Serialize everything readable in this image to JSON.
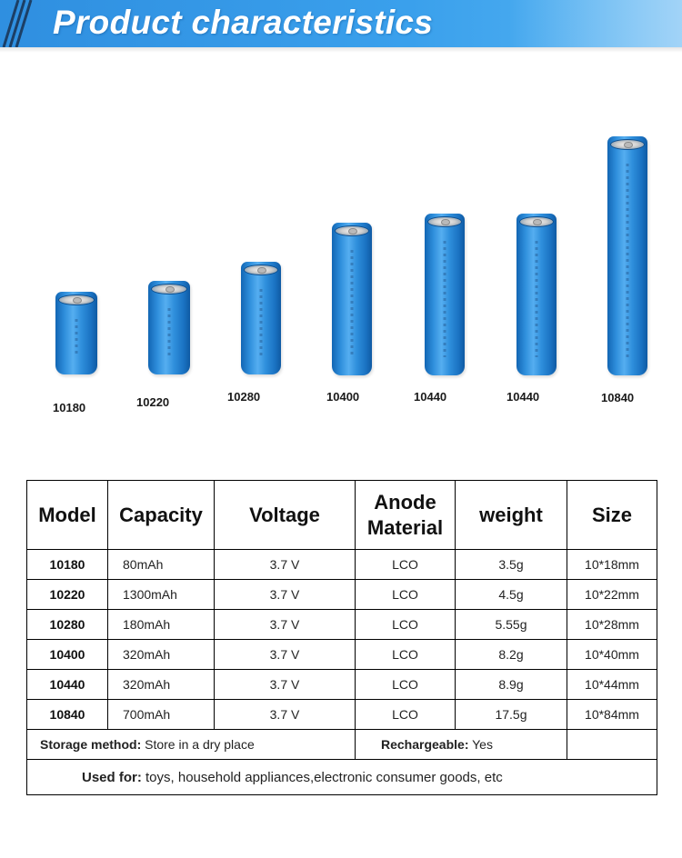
{
  "header": {
    "title": "Product characteristics",
    "accent_color": "#3aa0ec"
  },
  "batteries": [
    {
      "model": "10180"
    },
    {
      "model": "10220"
    },
    {
      "model": "10280"
    },
    {
      "model": "10400"
    },
    {
      "model": "10440"
    },
    {
      "model": "10440"
    },
    {
      "model": "10840"
    }
  ],
  "table": {
    "headers": {
      "model": "Model",
      "capacity": "Capacity",
      "voltage": "Voltage",
      "anode_line1": "Anode",
      "anode_line2": "Material",
      "weight": "weight",
      "size": "Size"
    },
    "rows": [
      {
        "model": "10180",
        "capacity": "80mAh",
        "voltage": "3.7 V",
        "material": "LCO",
        "weight": "3.5g",
        "size": "10*18mm"
      },
      {
        "model": "10220",
        "capacity": "1300mAh",
        "voltage": "3.7 V",
        "material": "LCO",
        "weight": "4.5g",
        "size": "10*22mm"
      },
      {
        "model": "10280",
        "capacity": "180mAh",
        "voltage": "3.7 V",
        "material": "LCO",
        "weight": "5.55g",
        "size": "10*28mm"
      },
      {
        "model": "10400",
        "capacity": "320mAh",
        "voltage": "3.7 V",
        "material": "LCO",
        "weight": "8.2g",
        "size": "10*40mm"
      },
      {
        "model": "10440",
        "capacity": "320mAh",
        "voltage": "3.7 V",
        "material": "LCO",
        "weight": "8.9g",
        "size": "10*44mm"
      },
      {
        "model": "10840",
        "capacity": "700mAh",
        "voltage": "3.7 V",
        "material": "LCO",
        "weight": "17.5g",
        "size": "10*84mm"
      }
    ],
    "storage": {
      "label": "Storage method:",
      "value": " Store in a dry place"
    },
    "rechargeable": {
      "label": "Rechargeable:",
      "value": " Yes"
    },
    "used_for": {
      "label": "Used for:",
      "value": " toys, household appliances,electronic consumer goods, etc"
    }
  }
}
